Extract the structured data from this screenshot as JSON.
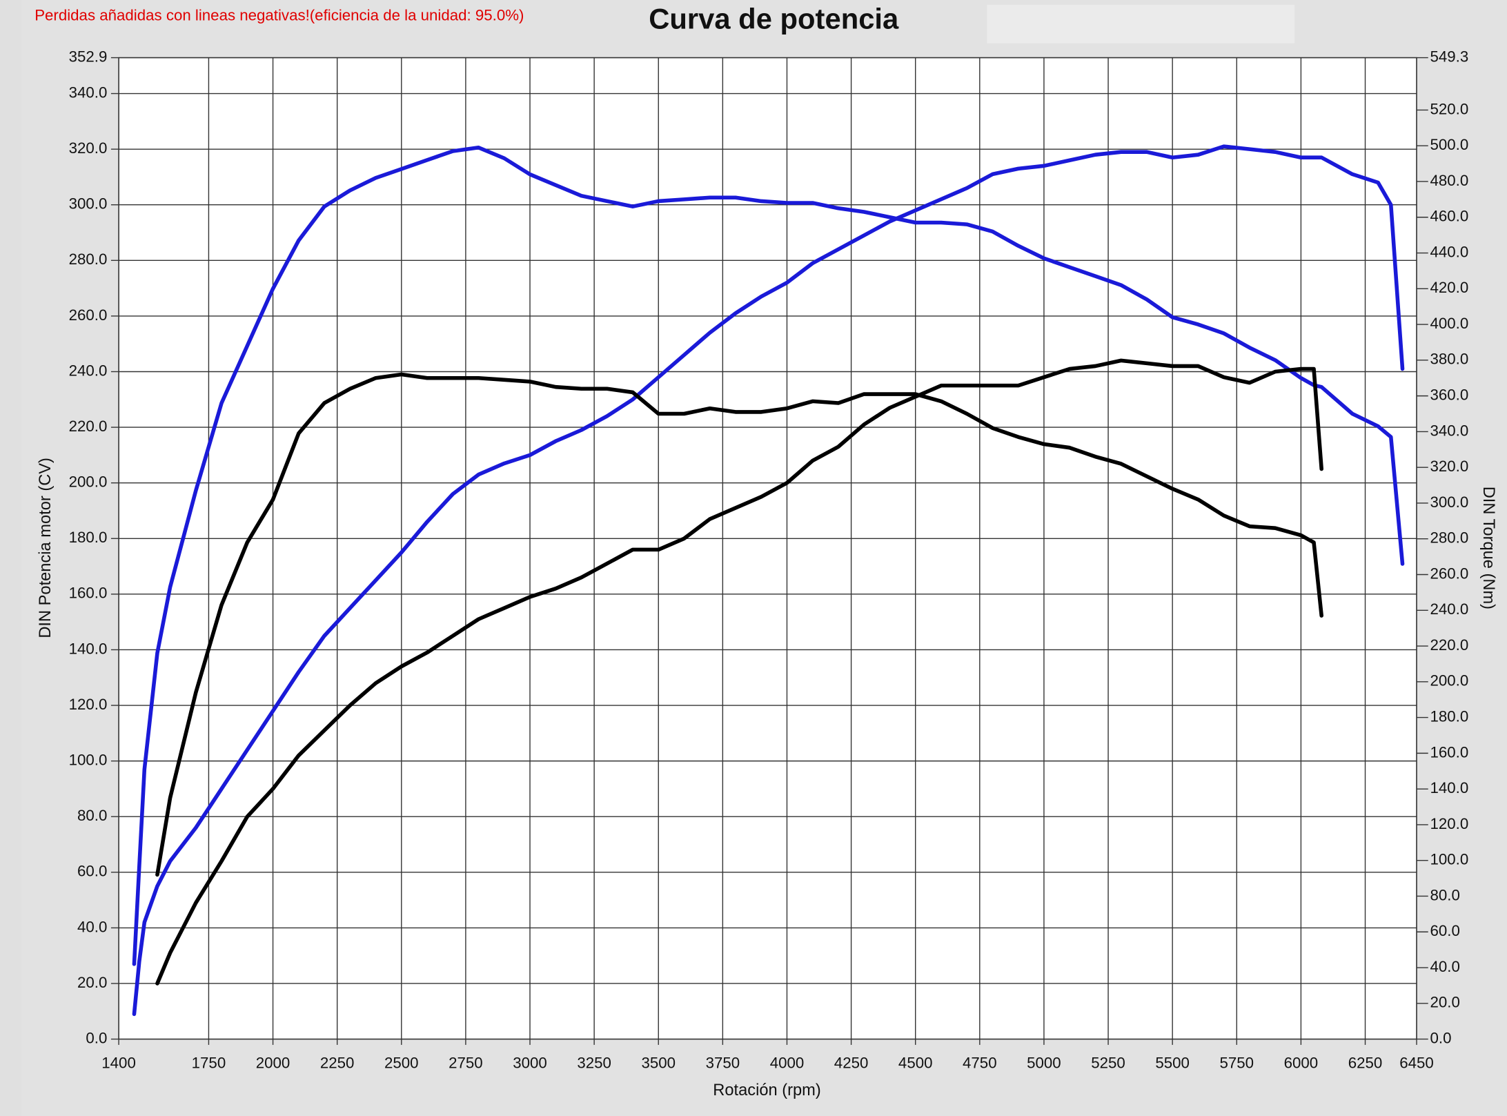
{
  "chart_data": {
    "type": "line",
    "title": "Curva de potencia",
    "subtitle": "Perdidas añadidas con lineas negativas!(eficiencia de la unidad: 95.0%)",
    "x_label": "Rotación (rpm)",
    "y_label": "DIN Potencia motor (CV)",
    "y2_label": "DIN Torque (Nm)",
    "grid": true,
    "xlim": [
      1400,
      6450
    ],
    "xticks": [
      1400,
      1750,
      2000,
      2250,
      2500,
      2750,
      3000,
      3250,
      3500,
      3750,
      4000,
      4250,
      4500,
      4750,
      5000,
      5250,
      5500,
      5750,
      6000,
      6250,
      6450
    ],
    "ylim": [
      0,
      352.9
    ],
    "yticks": [
      {
        "value": 0,
        "label": "0.0"
      },
      {
        "value": 20,
        "label": "20.0"
      },
      {
        "value": 40,
        "label": "40.0"
      },
      {
        "value": 60,
        "label": "60.0"
      },
      {
        "value": 80,
        "label": "80.0"
      },
      {
        "value": 100,
        "label": "100.0"
      },
      {
        "value": 120,
        "label": "120.0"
      },
      {
        "value": 140,
        "label": "140.0"
      },
      {
        "value": 160,
        "label": "160.0"
      },
      {
        "value": 180,
        "label": "180.0"
      },
      {
        "value": 200,
        "label": "200.0"
      },
      {
        "value": 220,
        "label": "220.0"
      },
      {
        "value": 240,
        "label": "240.0"
      },
      {
        "value": 260,
        "label": "260.0"
      },
      {
        "value": 280,
        "label": "280.0"
      },
      {
        "value": 300,
        "label": "300.0"
      },
      {
        "value": 320,
        "label": "320.0"
      },
      {
        "value": 340,
        "label": "340.0"
      },
      352.9
    ],
    "y2lim": [
      0,
      549.3
    ],
    "y2ticks": [
      {
        "value": 0,
        "label": "0.0"
      },
      {
        "value": 20,
        "label": "20.0"
      },
      {
        "value": 40,
        "label": "40.0"
      },
      {
        "value": 60,
        "label": "60.0"
      },
      {
        "value": 80,
        "label": "80.0"
      },
      {
        "value": 100,
        "label": "100.0"
      },
      {
        "value": 120,
        "label": "120.0"
      },
      {
        "value": 140,
        "label": "140.0"
      },
      {
        "value": 160,
        "label": "160.0"
      },
      {
        "value": 180,
        "label": "180.0"
      },
      {
        "value": 200,
        "label": "200.0"
      },
      {
        "value": 220,
        "label": "220.0"
      },
      {
        "value": 240,
        "label": "240.0"
      },
      {
        "value": 260,
        "label": "260.0"
      },
      {
        "value": 280,
        "label": "280.0"
      },
      {
        "value": 300,
        "label": "300.0"
      },
      {
        "value": 320,
        "label": "320.0"
      },
      {
        "value": 340,
        "label": "340.0"
      },
      {
        "value": 360,
        "label": "360.0"
      },
      {
        "value": 380,
        "label": "380.0"
      },
      {
        "value": 400,
        "label": "400.0"
      },
      {
        "value": 420,
        "label": "420.0"
      },
      {
        "value": 440,
        "label": "440.0"
      },
      {
        "value": 460,
        "label": "460.0"
      },
      {
        "value": 480,
        "label": "480.0"
      },
      {
        "value": 500,
        "label": "500.0"
      },
      {
        "value": 520,
        "label": "520.0"
      },
      549.3
    ],
    "x": [
      1460,
      1480,
      1500,
      1550,
      1600,
      1700,
      1800,
      1900,
      2000,
      2100,
      2200,
      2300,
      2400,
      2500,
      2600,
      2700,
      2800,
      2900,
      3000,
      3100,
      3200,
      3300,
      3400,
      3500,
      3600,
      3700,
      3800,
      3900,
      4000,
      4100,
      4200,
      4300,
      4400,
      4500,
      4600,
      4700,
      4800,
      4900,
      5000,
      5100,
      5200,
      5300,
      5400,
      5500,
      5600,
      5700,
      5800,
      5900,
      6000,
      6050,
      6080,
      6200,
      6300,
      6350,
      6395
    ],
    "series": [
      {
        "color": "#1a1ad8",
        "axis": "y",
        "values": [
          9,
          28,
          42,
          55,
          64,
          76,
          90,
          104,
          118,
          132,
          145,
          155,
          165,
          175,
          186,
          196,
          203,
          207,
          210,
          215,
          219,
          224,
          230,
          238,
          246,
          254,
          261,
          267,
          272,
          279,
          284,
          289,
          294,
          298,
          302,
          306,
          311,
          313,
          314,
          316,
          318,
          319,
          319,
          317,
          318,
          321,
          320,
          319,
          317,
          317,
          317,
          311,
          308,
          300,
          241
        ]
      },
      {
        "color": "#1a1ad8",
        "axis": "y2",
        "values": [
          42,
          97,
          151,
          216,
          253,
          307,
          356,
          388,
          420,
          447,
          466,
          475,
          482,
          487,
          492,
          497,
          499,
          493,
          484,
          478,
          472,
          469,
          466,
          469,
          470,
          471,
          471,
          469,
          468,
          468,
          465,
          463,
          460,
          457,
          457,
          456,
          452,
          444,
          437,
          432,
          427,
          422,
          414,
          404,
          400,
          395,
          387,
          380,
          370,
          366,
          365,
          350,
          343,
          337,
          266
        ]
      },
      {
        "color": "#000000",
        "axis": "y",
        "values": [
          null,
          null,
          null,
          20,
          31,
          49,
          64,
          80,
          90,
          102,
          111,
          120,
          128,
          134,
          139,
          145,
          151,
          155,
          159,
          162,
          166,
          171,
          176,
          176,
          180,
          187,
          191,
          195,
          200,
          208,
          213,
          221,
          227,
          231,
          235,
          235,
          235,
          235,
          238,
          241,
          242,
          244,
          243,
          242,
          242,
          238,
          236,
          240,
          241,
          241,
          205,
          null,
          null,
          null,
          null
        ]
      },
      {
        "color": "#000000",
        "axis": "y2",
        "values": [
          null,
          null,
          null,
          92,
          135,
          194,
          243,
          278,
          302,
          339,
          356,
          364,
          370,
          372,
          370,
          370,
          370,
          369,
          368,
          365,
          364,
          364,
          362,
          350,
          350,
          353,
          351,
          351,
          353,
          357,
          356,
          361,
          361,
          361,
          357,
          350,
          342,
          337,
          333,
          331,
          326,
          322,
          315,
          308,
          302,
          293,
          287,
          286,
          282,
          278,
          237,
          null,
          null,
          null,
          null
        ]
      }
    ]
  }
}
